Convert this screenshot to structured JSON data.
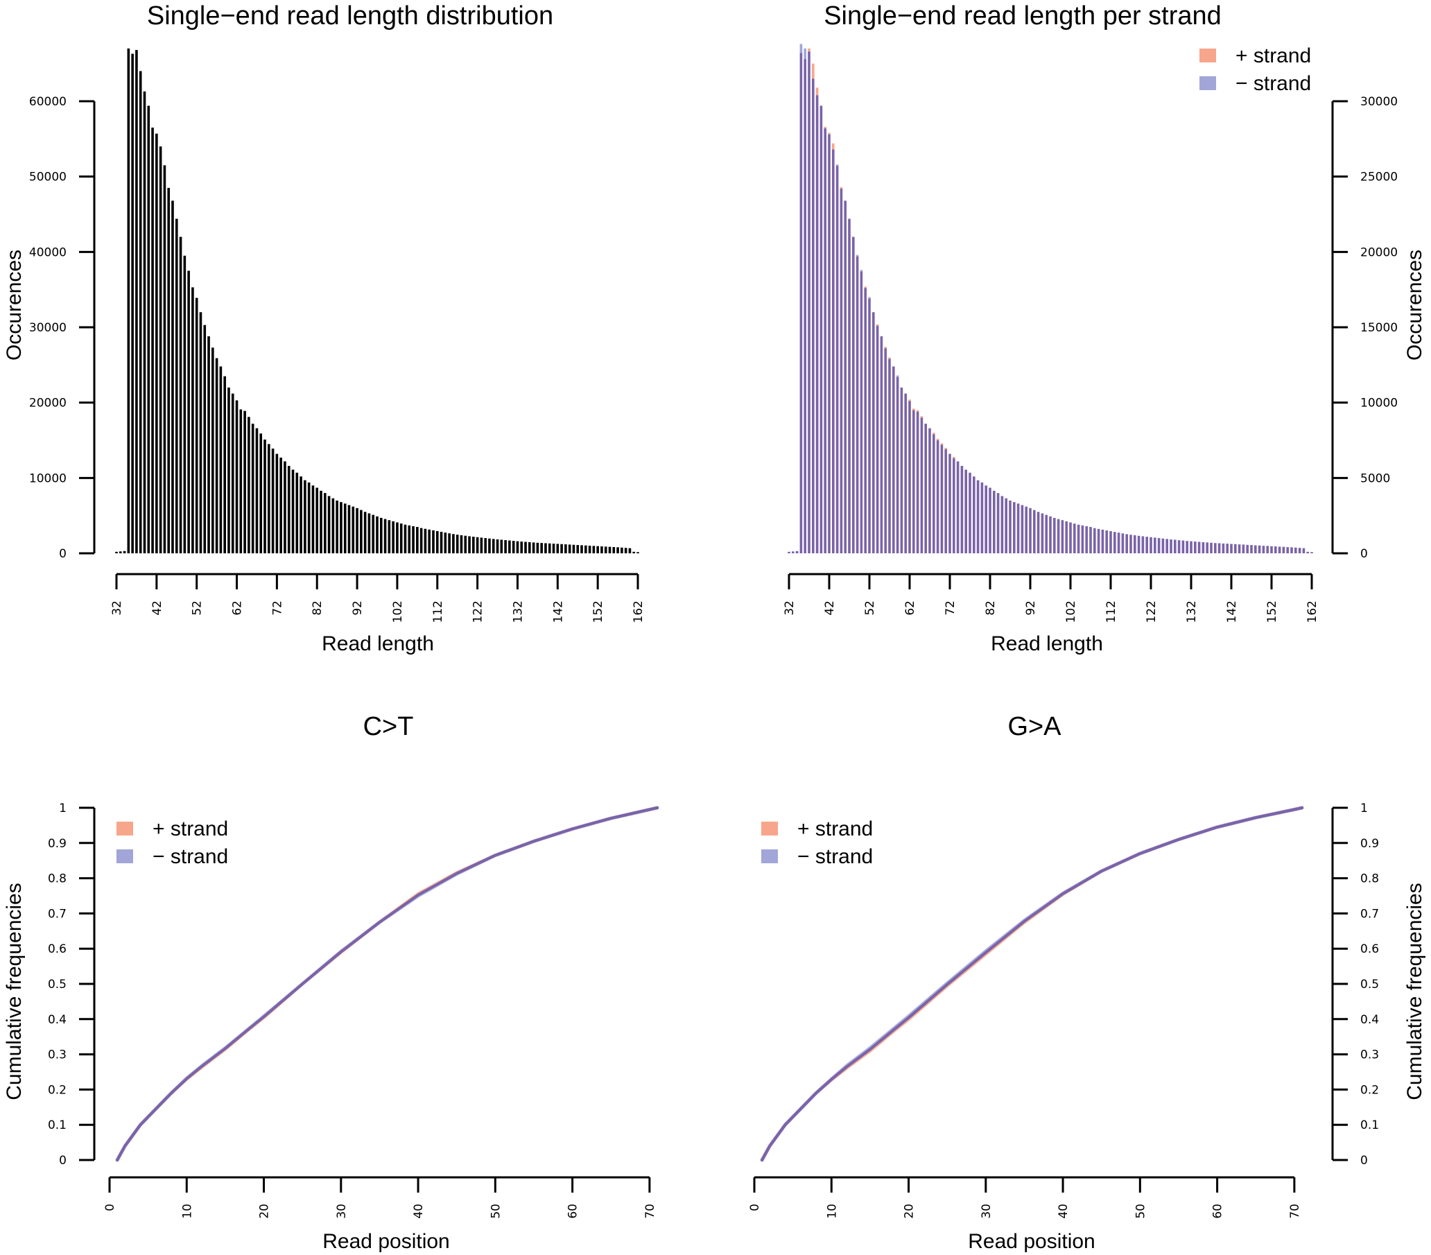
{
  "colors": {
    "plus_strand": "#f7a68b",
    "minus_strand": "#a1a5d8",
    "overlap": "#7a63a8",
    "bar_single": "#000000"
  },
  "chart_data": [
    {
      "id": "length_distribution",
      "type": "bar",
      "title": "Single−end read length distribution",
      "xlabel": "Read length",
      "ylabel": "Occurences",
      "yaxis_side": "left",
      "xticks": [
        32,
        42,
        52,
        62,
        72,
        82,
        92,
        102,
        112,
        122,
        132,
        142,
        152,
        162
      ],
      "yticks": [
        0,
        10000,
        20000,
        30000,
        40000,
        50000,
        60000
      ],
      "xlim": [
        32,
        162
      ],
      "ylim": [
        0,
        67000
      ],
      "x_start": 32,
      "values": [
        200,
        250,
        300,
        67000,
        66300,
        66800,
        64000,
        61300,
        59400,
        56500,
        55700,
        54000,
        51500,
        48500,
        46800,
        44400,
        42000,
        39500,
        37500,
        35300,
        33900,
        32000,
        30300,
        28800,
        27300,
        25900,
        24800,
        23500,
        22000,
        21200,
        20300,
        19100,
        18900,
        18100,
        17200,
        16600,
        15900,
        15100,
        14500,
        13900,
        13200,
        12700,
        12200,
        11600,
        11100,
        10700,
        10200,
        9700,
        9400,
        9000,
        8700,
        8300,
        8000,
        7600,
        7300,
        7000,
        6800,
        6600,
        6400,
        6200,
        6000,
        5750,
        5500,
        5300,
        5100,
        4900,
        4700,
        4550,
        4400,
        4250,
        4100,
        3950,
        3800,
        3700,
        3600,
        3500,
        3350,
        3250,
        3150,
        3050,
        2950,
        2850,
        2750,
        2650,
        2550,
        2470,
        2400,
        2330,
        2260,
        2200,
        2140,
        2080,
        2020,
        1960,
        1900,
        1850,
        1800,
        1750,
        1700,
        1650,
        1600,
        1560,
        1520,
        1480,
        1440,
        1400,
        1370,
        1340,
        1310,
        1280,
        1250,
        1220,
        1190,
        1160,
        1130,
        1100,
        1070,
        1040,
        1010,
        980,
        950,
        920,
        890,
        860,
        830,
        800,
        760,
        720,
        680,
        200,
        150
      ],
      "legend": null
    },
    {
      "id": "length_per_strand",
      "type": "bar",
      "title": "Single−end read length per strand",
      "xlabel": "Read length",
      "ylabel": "Occurences",
      "yaxis_side": "right",
      "xticks": [
        32,
        42,
        52,
        62,
        72,
        82,
        92,
        102,
        112,
        122,
        132,
        142,
        152,
        162
      ],
      "yticks": [
        0,
        5000,
        10000,
        15000,
        20000,
        25000,
        30000
      ],
      "xlim": [
        32,
        162
      ],
      "ylim": [
        0,
        33500
      ],
      "x_start": 32,
      "legend": {
        "position": "top-right",
        "items": [
          "+ strand",
          "− strand"
        ]
      },
      "series": [
        {
          "name": "+ strand",
          "values": [
            100,
            120,
            150,
            33200,
            32800,
            33500,
            32500,
            30900,
            29700,
            28300,
            27900,
            27200,
            25700,
            24300,
            23400,
            22200,
            21000,
            19700,
            18700,
            17700,
            16900,
            16000,
            15200,
            14400,
            13700,
            13000,
            12400,
            11700,
            11000,
            10600,
            10200,
            9600,
            9500,
            9100,
            8600,
            8300,
            8000,
            7600,
            7300,
            7000,
            6600,
            6400,
            6100,
            5800,
            5550,
            5350,
            5100,
            4850,
            4700,
            4500,
            4350,
            4150,
            4000,
            3800,
            3650,
            3500,
            3400,
            3300,
            3200,
            3100,
            3000,
            2870,
            2750,
            2650,
            2550,
            2450,
            2350,
            2270,
            2200,
            2120,
            2050,
            1970,
            1900,
            1850,
            1800,
            1750,
            1670,
            1620,
            1570,
            1520,
            1470,
            1420,
            1370,
            1320,
            1270,
            1230,
            1200,
            1160,
            1130,
            1100,
            1070,
            1040,
            1010,
            980,
            950,
            920,
            900,
            870,
            850,
            820,
            800,
            780,
            760,
            740,
            720,
            700,
            680,
            670,
            650,
            640,
            620,
            610,
            590,
            580,
            560,
            550,
            530,
            520,
            500,
            490,
            470,
            460,
            440,
            430,
            410,
            400,
            380,
            360,
            340,
            100,
            80
          ]
        },
        {
          "name": "− strand",
          "values": [
            100,
            130,
            150,
            33800,
            33500,
            33300,
            31500,
            30400,
            29700,
            28200,
            27800,
            26800,
            25800,
            24200,
            23400,
            22200,
            21000,
            19800,
            18800,
            17600,
            17000,
            16000,
            15100,
            14400,
            13600,
            12900,
            12400,
            11800,
            11000,
            10600,
            10100,
            9500,
            9400,
            9000,
            8600,
            8300,
            7900,
            7500,
            7200,
            6900,
            6600,
            6300,
            6100,
            5800,
            5550,
            5350,
            5100,
            4850,
            4700,
            4500,
            4350,
            4150,
            4000,
            3800,
            3650,
            3500,
            3400,
            3300,
            3200,
            3100,
            3000,
            2870,
            2750,
            2650,
            2550,
            2450,
            2350,
            2270,
            2200,
            2120,
            2050,
            1970,
            1900,
            1850,
            1800,
            1750,
            1670,
            1620,
            1570,
            1520,
            1470,
            1420,
            1370,
            1320,
            1270,
            1230,
            1200,
            1160,
            1130,
            1100,
            1070,
            1040,
            1010,
            980,
            950,
            920,
            900,
            870,
            850,
            820,
            800,
            780,
            760,
            740,
            720,
            700,
            680,
            670,
            650,
            640,
            620,
            610,
            590,
            580,
            560,
            550,
            530,
            520,
            500,
            490,
            470,
            460,
            440,
            430,
            410,
            400,
            380,
            360,
            340,
            100,
            80
          ]
        }
      ]
    },
    {
      "id": "ct_cumulative",
      "type": "line",
      "title": "C>T",
      "xlabel": "Read position",
      "ylabel": "Cumulative frequencies",
      "yaxis_side": "left",
      "xticks": [
        0,
        10,
        20,
        30,
        40,
        50,
        60,
        70
      ],
      "yticks": [
        0,
        0.1,
        0.2,
        0.3,
        0.4,
        0.5,
        0.6,
        0.7,
        0.8,
        0.9,
        1
      ],
      "ytick_labels": [
        "0",
        "0.1",
        "0.2",
        "0.3",
        "0.4",
        "0.5",
        "0.6",
        "0.7",
        "0.8",
        "0.9",
        "1"
      ],
      "xlim": [
        0,
        71
      ],
      "ylim": [
        0,
        1
      ],
      "legend": {
        "position": "top-left",
        "items": [
          "+ strand",
          "− strand"
        ]
      },
      "x": [
        1,
        2,
        4,
        6,
        8,
        10,
        12,
        15,
        18,
        20,
        25,
        30,
        35,
        40,
        45,
        50,
        55,
        60,
        65,
        70,
        71
      ],
      "series": [
        {
          "name": "+ strand",
          "values": [
            0,
            0.04,
            0.1,
            0.145,
            0.19,
            0.23,
            0.265,
            0.315,
            0.37,
            0.405,
            0.5,
            0.59,
            0.675,
            0.755,
            0.815,
            0.865,
            0.905,
            0.94,
            0.97,
            0.995,
            1
          ]
        },
        {
          "name": "− strand",
          "values": [
            0,
            0.04,
            0.1,
            0.145,
            0.19,
            0.232,
            0.268,
            0.318,
            0.372,
            0.408,
            0.5,
            0.592,
            0.675,
            0.75,
            0.812,
            0.865,
            0.905,
            0.94,
            0.97,
            0.995,
            1
          ]
        }
      ]
    },
    {
      "id": "ga_cumulative",
      "type": "line",
      "title": "G>A",
      "xlabel": "Read position",
      "ylabel": "Cumulative frequencies",
      "yaxis_side": "right",
      "xticks": [
        0,
        10,
        20,
        30,
        40,
        50,
        60,
        70
      ],
      "yticks": [
        0,
        0.1,
        0.2,
        0.3,
        0.4,
        0.5,
        0.6,
        0.7,
        0.8,
        0.9,
        1
      ],
      "ytick_labels": [
        "0",
        "0.1",
        "0.2",
        "0.3",
        "0.4",
        "0.5",
        "0.6",
        "0.7",
        "0.8",
        "0.9",
        "1"
      ],
      "xlim": [
        0,
        71
      ],
      "ylim": [
        0,
        1
      ],
      "legend": {
        "position": "top-left",
        "items": [
          "+ strand",
          "− strand"
        ]
      },
      "x": [
        1,
        2,
        4,
        6,
        8,
        10,
        12,
        15,
        18,
        20,
        25,
        30,
        35,
        40,
        45,
        50,
        55,
        60,
        65,
        70,
        71
      ],
      "series": [
        {
          "name": "+ strand",
          "values": [
            0,
            0.04,
            0.1,
            0.145,
            0.19,
            0.228,
            0.262,
            0.31,
            0.365,
            0.4,
            0.495,
            0.585,
            0.675,
            0.755,
            0.82,
            0.87,
            0.91,
            0.945,
            0.972,
            0.995,
            1
          ]
        },
        {
          "name": "− strand",
          "values": [
            0,
            0.04,
            0.1,
            0.145,
            0.19,
            0.23,
            0.268,
            0.318,
            0.372,
            0.408,
            0.502,
            0.593,
            0.68,
            0.757,
            0.82,
            0.87,
            0.91,
            0.945,
            0.972,
            0.995,
            1
          ]
        }
      ]
    }
  ]
}
